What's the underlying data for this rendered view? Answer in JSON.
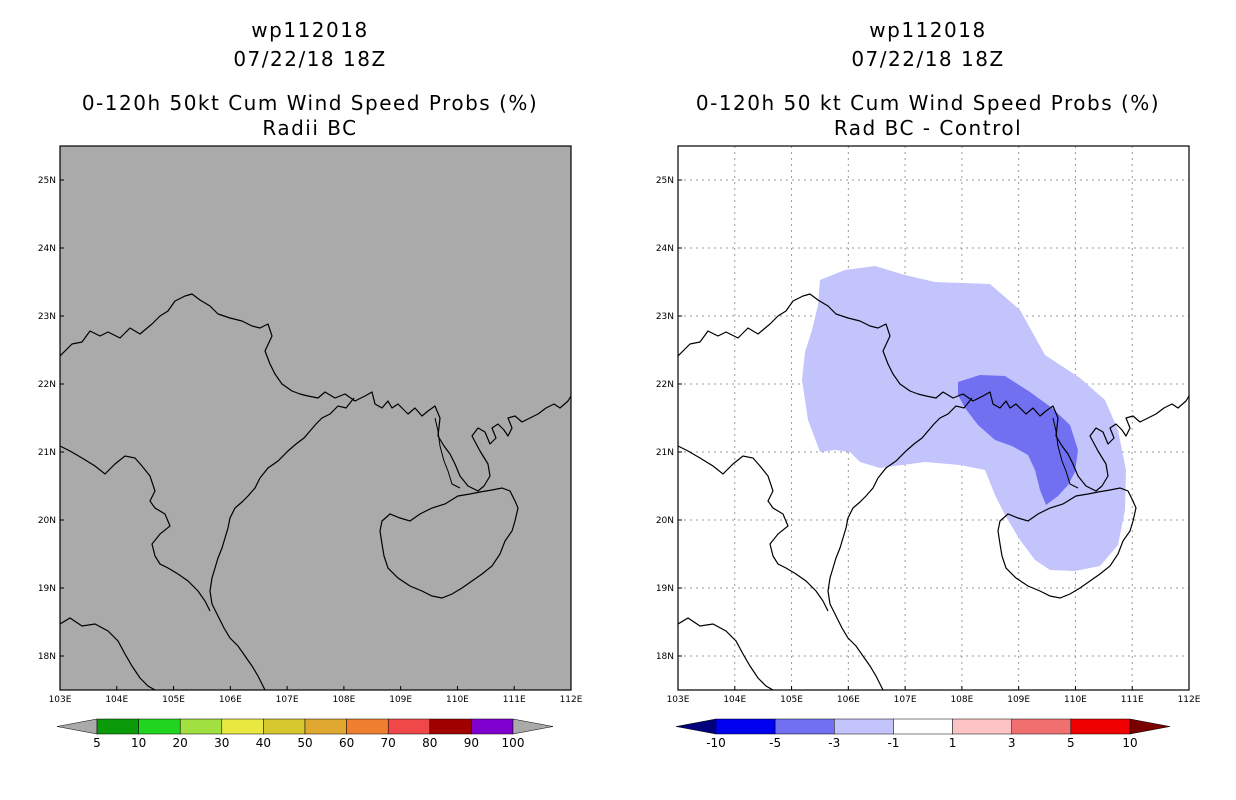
{
  "left_panel": {
    "title_line1": "wp112018",
    "title_line2": "07/22/18 18Z",
    "title_line3": "0-120h 50kt Cum Wind Speed Probs (%)",
    "title_line4": "Radii BC",
    "background_color": "#aaaaaa"
  },
  "right_panel": {
    "title_line1": "wp112018",
    "title_line2": "07/22/18 18Z",
    "title_line3": "0-120h 50 kt Cum Wind Speed Probs (%)",
    "title_line4": "Rad BC - Control",
    "background_color": "#ffffff"
  },
  "map_axes": {
    "lon_labels": [
      "103E",
      "104E",
      "105E",
      "106E",
      "107E",
      "108E",
      "109E",
      "110E",
      "111E",
      "112E"
    ],
    "lat_labels": [
      "18N",
      "19N",
      "20N",
      "21N",
      "22N",
      "23N",
      "24N",
      "25N"
    ],
    "lon_range": [
      103,
      112
    ],
    "lat_range": [
      17.5,
      25.5
    ]
  },
  "left_colorbar": {
    "labels": [
      "5",
      "10",
      "20",
      "30",
      "40",
      "50",
      "60",
      "70",
      "80",
      "90",
      "100"
    ],
    "colors": [
      "#aaaaaa",
      "#0a9a0a",
      "#20d420",
      "#a0e040",
      "#e8e840",
      "#d8c830",
      "#e0a830",
      "#f08030",
      "#f04848",
      "#a00000",
      "#8000d0",
      "#aaaaaa"
    ]
  },
  "right_colorbar": {
    "labels": [
      "-10",
      "-5",
      "-3",
      "-1",
      "1",
      "3",
      "5",
      "10"
    ],
    "colors": [
      "#00007a",
      "#0000f0",
      "#7070f0",
      "#c4c4fc",
      "#ffffff",
      "#fcc4c4",
      "#f07070",
      "#f00000",
      "#7a0000"
    ]
  },
  "difference_field": {
    "light_region_value_range": "-3 to -1",
    "dark_region_value_range": "-5 to -3",
    "light_color": "#c4c4fc",
    "dark_color": "#7070f0"
  }
}
